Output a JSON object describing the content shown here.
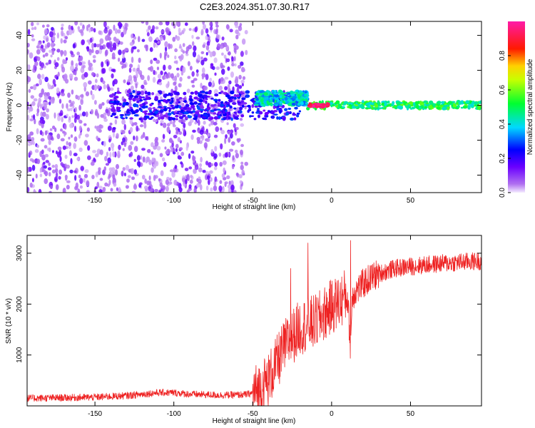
{
  "figure_title": "C2E3.2024.351.07.30.R17",
  "colors": {
    "snr_line": "#ee2222",
    "axis": "#000000",
    "spectro_low": "#9b30ff",
    "spectro_bg_dots": "#c9a6f5"
  },
  "chart_data": [
    {
      "type": "heatmap",
      "title": "C2E3.2024.351.07.30.R17",
      "xlabel": "Height of straight line (km)",
      "ylabel": "Frequency (Hz)",
      "xlim": [
        -193,
        95
      ],
      "ylim": [
        -50,
        48
      ],
      "x_ticks": [
        -150,
        -100,
        -50,
        0,
        50
      ],
      "y_ticks": [
        -40,
        -20,
        0,
        20,
        40
      ],
      "grid": false,
      "colorbar": {
        "label": "Normalized spectral amplitude",
        "range": [
          0.0,
          1.0
        ],
        "ticks": [
          0.0,
          0.2,
          0.4,
          0.6,
          0.8
        ],
        "colormap": "rainbow (violet-blue-cyan-green-yellow-red-magenta)"
      },
      "features": [
        {
          "x_range": [
            -193,
            -54
          ],
          "freq_range": [
            -50,
            48
          ],
          "amplitude": 0.1,
          "description_key": "broadband low-amplitude noise"
        },
        {
          "x_range": [
            -140,
            -20
          ],
          "freq_center": 0,
          "freq_halfwidth": 8,
          "amplitude": 0.2
        },
        {
          "x_range": [
            -48,
            -15
          ],
          "freq_center": 4,
          "freq_halfwidth": 4,
          "amplitude": 0.4
        },
        {
          "x_range": [
            -15,
            95
          ],
          "freq_center": 0,
          "freq_halfwidth": 2,
          "amplitude": 0.5
        },
        {
          "x_range": [
            -15,
            -2
          ],
          "freq_center": 0,
          "freq_halfwidth": 1,
          "amplitude": 0.95
        }
      ]
    },
    {
      "type": "line",
      "xlabel": "Height of straight line (km)",
      "ylabel": "SNR (10 * v/v)",
      "xlim": [
        -193,
        95
      ],
      "ylim": [
        0,
        3350
      ],
      "x_ticks": [
        -150,
        -100,
        -50,
        0,
        50
      ],
      "y_ticks": [
        1000,
        2000,
        3000
      ],
      "grid": false,
      "series": [
        {
          "x": [
            -193,
            -170,
            -150,
            -130,
            -110,
            -100,
            -90,
            -70,
            -55,
            -50,
            -45,
            -40,
            -35,
            -30,
            -25,
            -20,
            -15,
            -10,
            -5,
            0,
            5,
            10,
            12,
            13,
            15,
            20,
            25,
            30,
            40,
            50,
            60,
            70,
            80,
            90,
            95
          ],
          "y": [
            150,
            160,
            170,
            200,
            260,
            260,
            230,
            210,
            220,
            250,
            350,
            520,
            820,
            1150,
            1350,
            1550,
            1600,
            1650,
            1800,
            1950,
            2050,
            2200,
            1100,
            2150,
            2250,
            2400,
            2520,
            2600,
            2700,
            2740,
            2770,
            2800,
            2820,
            2840,
            2850
          ]
        }
      ],
      "spikes": [
        {
          "x": -26,
          "y": 2700
        },
        {
          "x": -15,
          "y": 3200
        },
        {
          "x": 12,
          "y": 3250
        }
      ]
    }
  ]
}
